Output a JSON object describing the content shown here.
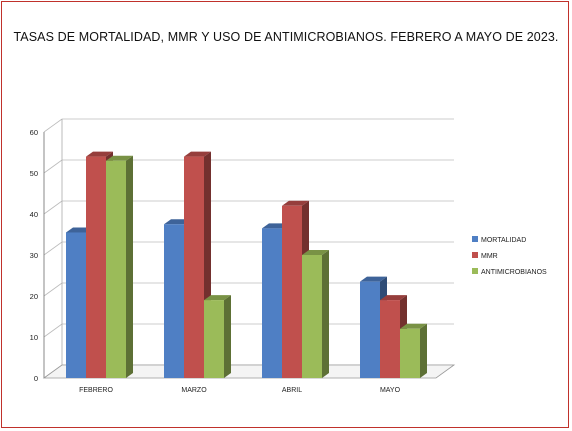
{
  "chart_data": {
    "type": "bar",
    "title": "TASAS DE MORTALIDAD, MMR Y USO DE ANTIMICROBIANOS. FEBRERO A MAYO DE 2023.",
    "categories": [
      "FEBRERO",
      "MARZO",
      "ABRIL",
      "MAYO"
    ],
    "series": [
      {
        "name": "MORTALIDAD",
        "values": [
          35.5,
          37.5,
          36.5,
          23.5
        ]
      },
      {
        "name": "MMR",
        "values": [
          54,
          54,
          42,
          19
        ]
      },
      {
        "name": "ANTIMICROBIANOS",
        "values": [
          53,
          19,
          30,
          12
        ]
      }
    ],
    "ylim": [
      0,
      60
    ],
    "yticks": [
      "0",
      "10",
      "20",
      "30",
      "40",
      "50",
      "60"
    ],
    "grid": true,
    "legend_position": "right",
    "colors": {
      "MORTALIDAD": "#4f7fc4",
      "MMR": "#c0504d",
      "ANTIMICROBIANOS": "#9bbb59",
      "border": "#c0312b"
    }
  }
}
